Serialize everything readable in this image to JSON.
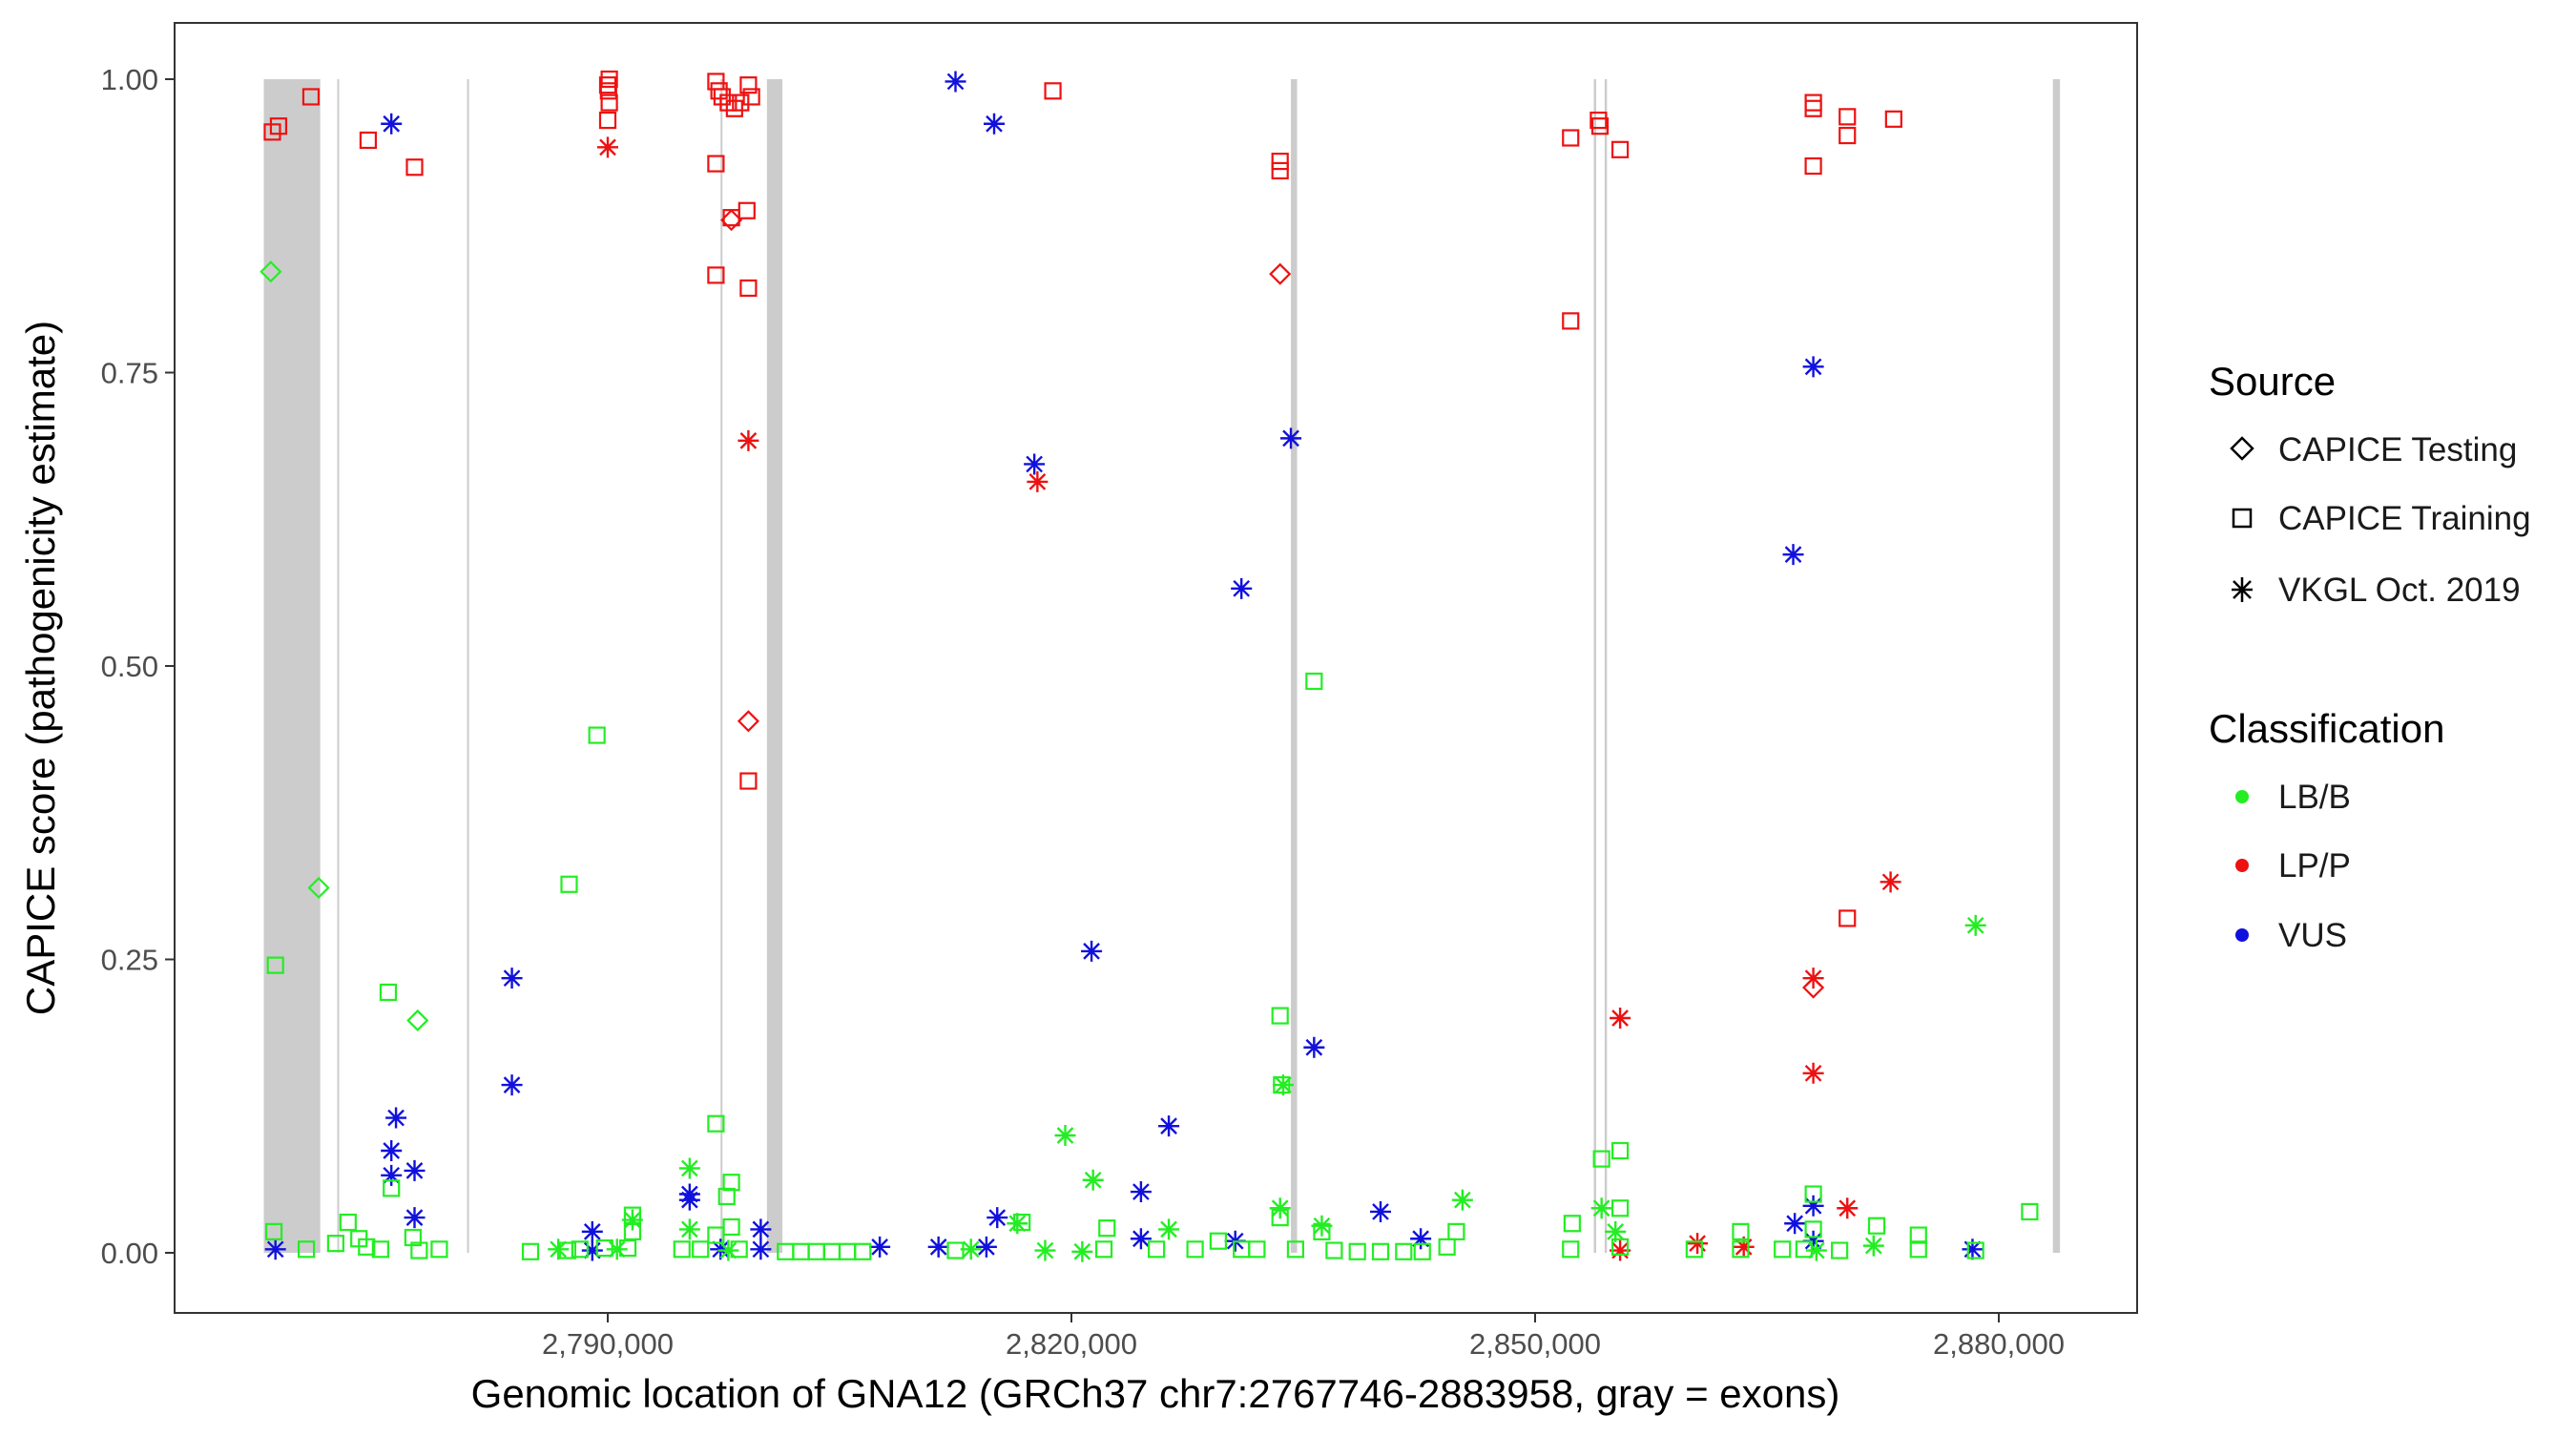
{
  "chart_data": {
    "type": "scatter",
    "xlabel": "Genomic location of GNA12 (GRCh37 chr7:2767746-2883958, gray = exons)",
    "ylabel": "CAPICE score (pathogenicity estimate)",
    "xlim": [
      2763500,
      2890000
    ],
    "ylim": [
      -0.05,
      1.05
    ],
    "x_ticks": [
      2790000,
      2820000,
      2850000,
      2880000
    ],
    "x_tick_labels": [
      "2,790,000",
      "2,820,000",
      "2,850,000",
      "2,880,000"
    ],
    "y_ticks": [
      0.0,
      0.25,
      0.5,
      0.75,
      1.0
    ],
    "y_tick_labels": [
      "0.00",
      "0.25",
      "0.50",
      "0.75",
      "1.00"
    ],
    "grid": false,
    "exons": [
      [
        2767746,
        2771400
      ],
      [
        2772500,
        2772620
      ],
      [
        2780900,
        2781000
      ],
      [
        2797300,
        2797420
      ],
      [
        2800300,
        2801300
      ],
      [
        2834200,
        2834600
      ],
      [
        2853800,
        2853950
      ],
      [
        2854500,
        2854650
      ],
      [
        2883500,
        2883958
      ]
    ],
    "colors": {
      "LB/B": "#22ee22",
      "LP/P": "#ee1111",
      "VUS": "#1111dd",
      "exon": "#cccccc"
    },
    "legend": {
      "placement": "right",
      "source_title": "Source",
      "source_items": [
        {
          "label": "CAPICE Testing",
          "shape": "diamond"
        },
        {
          "label": "CAPICE Training",
          "shape": "square"
        },
        {
          "label": "VKGL Oct. 2019",
          "shape": "asterisk"
        }
      ],
      "class_title": "Classification",
      "class_items": [
        {
          "label": "LB/B",
          "color": "#22ee22"
        },
        {
          "label": "LP/P",
          "color": "#ee1111"
        },
        {
          "label": "VUS",
          "color": "#1111dd"
        }
      ]
    },
    "series": [
      {
        "name": "LP/P",
        "points": [
          [
            2768300,
            0.955,
            "square"
          ],
          [
            2768700,
            0.96,
            "square"
          ],
          [
            2770800,
            0.985,
            "square"
          ],
          [
            2774500,
            0.948,
            "square"
          ],
          [
            2777500,
            0.925,
            "square"
          ],
          [
            2790000,
            0.995,
            "square"
          ],
          [
            2790050,
            0.99,
            "square"
          ],
          [
            2790100,
            0.98,
            "square"
          ],
          [
            2790000,
            0.965,
            "square"
          ],
          [
            2790100,
            1.0,
            "square"
          ],
          [
            2790000,
            0.942,
            "asterisk"
          ],
          [
            2797000,
            0.998,
            "square"
          ],
          [
            2797200,
            0.99,
            "square"
          ],
          [
            2797400,
            0.985,
            "square"
          ],
          [
            2797800,
            0.98,
            "square"
          ],
          [
            2798200,
            0.975,
            "square"
          ],
          [
            2798600,
            0.98,
            "square"
          ],
          [
            2799100,
            0.995,
            "square"
          ],
          [
            2799300,
            0.985,
            "square"
          ],
          [
            2797000,
            0.928,
            "square"
          ],
          [
            2797000,
            0.833,
            "square"
          ],
          [
            2798000,
            0.88,
            "diamond"
          ],
          [
            2798000,
            0.882,
            "square"
          ],
          [
            2799000,
            0.888,
            "square"
          ],
          [
            2799100,
            0.822,
            "square"
          ],
          [
            2799100,
            0.692,
            "asterisk"
          ],
          [
            2799100,
            0.453,
            "diamond"
          ],
          [
            2799100,
            0.402,
            "square"
          ],
          [
            2818800,
            0.99,
            "square"
          ],
          [
            2817800,
            0.657,
            "asterisk"
          ],
          [
            2833500,
            0.93,
            "square"
          ],
          [
            2833500,
            0.922,
            "square"
          ],
          [
            2833500,
            0.834,
            "diamond"
          ],
          [
            2852300,
            0.95,
            "square"
          ],
          [
            2854100,
            0.965,
            "square"
          ],
          [
            2854200,
            0.96,
            "square"
          ],
          [
            2855500,
            0.94,
            "square"
          ],
          [
            2852300,
            0.794,
            "square"
          ],
          [
            2855500,
            0.2,
            "asterisk"
          ],
          [
            2855500,
            0.002,
            "asterisk"
          ],
          [
            2860500,
            0.008,
            "asterisk"
          ],
          [
            2863500,
            0.005,
            "asterisk"
          ],
          [
            2868000,
            0.98,
            "square"
          ],
          [
            2868000,
            0.975,
            "square"
          ],
          [
            2870200,
            0.968,
            "square"
          ],
          [
            2870200,
            0.952,
            "square"
          ],
          [
            2868000,
            0.926,
            "square"
          ],
          [
            2873200,
            0.966,
            "square"
          ],
          [
            2870200,
            0.285,
            "square"
          ],
          [
            2873000,
            0.316,
            "asterisk"
          ],
          [
            2868000,
            0.234,
            "asterisk"
          ],
          [
            2868000,
            0.226,
            "diamond"
          ],
          [
            2868000,
            0.153,
            "asterisk"
          ],
          [
            2870200,
            0.038,
            "asterisk"
          ]
        ]
      },
      {
        "name": "VUS",
        "points": [
          [
            2776000,
            0.962,
            "asterisk"
          ],
          [
            2776000,
            0.087,
            "asterisk"
          ],
          [
            2776000,
            0.066,
            "asterisk"
          ],
          [
            2776300,
            0.115,
            "asterisk"
          ],
          [
            2777500,
            0.07,
            "asterisk"
          ],
          [
            2777500,
            0.03,
            "asterisk"
          ],
          [
            2768500,
            0.003,
            "asterisk"
          ],
          [
            2783800,
            0.234,
            "asterisk"
          ],
          [
            2783800,
            0.143,
            "asterisk"
          ],
          [
            2789000,
            0.018,
            "asterisk"
          ],
          [
            2789000,
            0.002,
            "asterisk"
          ],
          [
            2795300,
            0.05,
            "asterisk"
          ],
          [
            2795300,
            0.045,
            "asterisk"
          ],
          [
            2797300,
            0.003,
            "asterisk"
          ],
          [
            2799900,
            0.02,
            "asterisk"
          ],
          [
            2799900,
            0.003,
            "asterisk"
          ],
          [
            2807600,
            0.005,
            "asterisk"
          ],
          [
            2811400,
            0.005,
            "asterisk"
          ],
          [
            2812500,
            0.998,
            "asterisk"
          ],
          [
            2814500,
            0.005,
            "asterisk"
          ],
          [
            2815000,
            0.962,
            "asterisk"
          ],
          [
            2815200,
            0.03,
            "asterisk"
          ],
          [
            2817600,
            0.672,
            "asterisk"
          ],
          [
            2821300,
            0.257,
            "asterisk"
          ],
          [
            2824500,
            0.052,
            "asterisk"
          ],
          [
            2824500,
            0.012,
            "asterisk"
          ],
          [
            2826300,
            0.108,
            "asterisk"
          ],
          [
            2831000,
            0.566,
            "asterisk"
          ],
          [
            2830600,
            0.01,
            "asterisk"
          ],
          [
            2834200,
            0.694,
            "asterisk"
          ],
          [
            2835700,
            0.175,
            "asterisk"
          ],
          [
            2840000,
            0.035,
            "asterisk"
          ],
          [
            2842600,
            0.012,
            "asterisk"
          ],
          [
            2866700,
            0.595,
            "asterisk"
          ],
          [
            2868000,
            0.755,
            "asterisk"
          ],
          [
            2866800,
            0.025,
            "asterisk"
          ],
          [
            2868000,
            0.04,
            "asterisk"
          ],
          [
            2868000,
            0.01,
            "asterisk"
          ],
          [
            2878300,
            0.003,
            "asterisk"
          ]
        ]
      },
      {
        "name": "LB/B",
        "points": [
          [
            2768200,
            0.836,
            "diamond"
          ],
          [
            2768500,
            0.245,
            "square"
          ],
          [
            2771300,
            0.311,
            "diamond"
          ],
          [
            2775800,
            0.222,
            "square"
          ],
          [
            2777700,
            0.198,
            "diamond"
          ],
          [
            2787500,
            0.314,
            "square"
          ],
          [
            2789300,
            0.441,
            "square"
          ],
          [
            2776000,
            0.055,
            "square"
          ],
          [
            2768400,
            0.018,
            "square"
          ],
          [
            2770500,
            0.003,
            "square"
          ],
          [
            2772400,
            0.008,
            "square"
          ],
          [
            2773200,
            0.026,
            "square"
          ],
          [
            2773900,
            0.012,
            "square"
          ],
          [
            2774400,
            0.005,
            "square"
          ],
          [
            2775300,
            0.003,
            "square"
          ],
          [
            2777400,
            0.013,
            "square"
          ],
          [
            2779100,
            0.003,
            "square"
          ],
          [
            2777800,
            0.002,
            "square"
          ],
          [
            2785000,
            0.001,
            "square"
          ],
          [
            2786800,
            0.003,
            "asterisk"
          ],
          [
            2787400,
            0.002,
            "square"
          ],
          [
            2788200,
            0.003,
            "square"
          ],
          [
            2789800,
            0.004,
            "square"
          ],
          [
            2790600,
            0.003,
            "asterisk"
          ],
          [
            2791300,
            0.004,
            "square"
          ],
          [
            2791600,
            0.032,
            "square"
          ],
          [
            2791600,
            0.018,
            "square"
          ],
          [
            2791600,
            0.028,
            "asterisk"
          ],
          [
            2794800,
            0.003,
            "square"
          ],
          [
            2795300,
            0.072,
            "asterisk"
          ],
          [
            2795300,
            0.02,
            "asterisk"
          ],
          [
            2796000,
            0.003,
            "square"
          ],
          [
            2797000,
            0.11,
            "square"
          ],
          [
            2797000,
            0.015,
            "square"
          ],
          [
            2797700,
            0.048,
            "square"
          ],
          [
            2798000,
            0.06,
            "square"
          ],
          [
            2798000,
            0.022,
            "square"
          ],
          [
            2797800,
            0.002,
            "asterisk"
          ],
          [
            2798500,
            0.003,
            "square"
          ],
          [
            2801500,
            0.001,
            "square"
          ],
          [
            2802500,
            0.001,
            "square"
          ],
          [
            2803500,
            0.001,
            "square"
          ],
          [
            2804500,
            0.001,
            "square"
          ],
          [
            2805500,
            0.001,
            "square"
          ],
          [
            2806500,
            0.001,
            "square"
          ],
          [
            2812500,
            0.002,
            "square"
          ],
          [
            2813500,
            0.003,
            "asterisk"
          ],
          [
            2816500,
            0.025,
            "asterisk"
          ],
          [
            2816800,
            0.026,
            "square"
          ],
          [
            2818300,
            0.002,
            "asterisk"
          ],
          [
            2819600,
            0.1,
            "asterisk"
          ],
          [
            2820700,
            0.001,
            "asterisk"
          ],
          [
            2821400,
            0.062,
            "asterisk"
          ],
          [
            2822100,
            0.003,
            "square"
          ],
          [
            2822300,
            0.021,
            "square"
          ],
          [
            2825500,
            0.003,
            "square"
          ],
          [
            2826300,
            0.02,
            "asterisk"
          ],
          [
            2828000,
            0.003,
            "square"
          ],
          [
            2829500,
            0.01,
            "square"
          ],
          [
            2831000,
            0.003,
            "square"
          ],
          [
            2832000,
            0.003,
            "square"
          ],
          [
            2833500,
            0.202,
            "square"
          ],
          [
            2833600,
            0.143,
            "square"
          ],
          [
            2833700,
            0.143,
            "asterisk"
          ],
          [
            2833500,
            0.038,
            "asterisk"
          ],
          [
            2833500,
            0.03,
            "square"
          ],
          [
            2834500,
            0.003,
            "square"
          ],
          [
            2835700,
            0.487,
            "square"
          ],
          [
            2836200,
            0.023,
            "asterisk"
          ],
          [
            2836200,
            0.018,
            "square"
          ],
          [
            2837000,
            0.002,
            "square"
          ],
          [
            2838500,
            0.001,
            "square"
          ],
          [
            2840000,
            0.001,
            "square"
          ],
          [
            2841500,
            0.001,
            "square"
          ],
          [
            2842700,
            0.001,
            "square"
          ],
          [
            2844300,
            0.005,
            "square"
          ],
          [
            2844900,
            0.018,
            "square"
          ],
          [
            2845300,
            0.045,
            "asterisk"
          ],
          [
            2852300,
            0.003,
            "square"
          ],
          [
            2852400,
            0.025,
            "square"
          ],
          [
            2854300,
            0.08,
            "square"
          ],
          [
            2854300,
            0.038,
            "asterisk"
          ],
          [
            2855200,
            0.018,
            "asterisk"
          ],
          [
            2855500,
            0.087,
            "square"
          ],
          [
            2855500,
            0.038,
            "square"
          ],
          [
            2855500,
            0.005,
            "square"
          ],
          [
            2860300,
            0.003,
            "square"
          ],
          [
            2863300,
            0.003,
            "square"
          ],
          [
            2863300,
            0.018,
            "square"
          ],
          [
            2866000,
            0.003,
            "square"
          ],
          [
            2867400,
            0.003,
            "square"
          ],
          [
            2868000,
            0.05,
            "square"
          ],
          [
            2868000,
            0.02,
            "square"
          ],
          [
            2868200,
            0.002,
            "asterisk"
          ],
          [
            2869700,
            0.002,
            "square"
          ],
          [
            2871900,
            0.006,
            "asterisk"
          ],
          [
            2872100,
            0.023,
            "square"
          ],
          [
            2874800,
            0.003,
            "square"
          ],
          [
            2874800,
            0.015,
            "square"
          ],
          [
            2878500,
            0.279,
            "asterisk"
          ],
          [
            2878500,
            0.002,
            "square"
          ],
          [
            2882000,
            0.035,
            "square"
          ]
        ]
      }
    ]
  }
}
